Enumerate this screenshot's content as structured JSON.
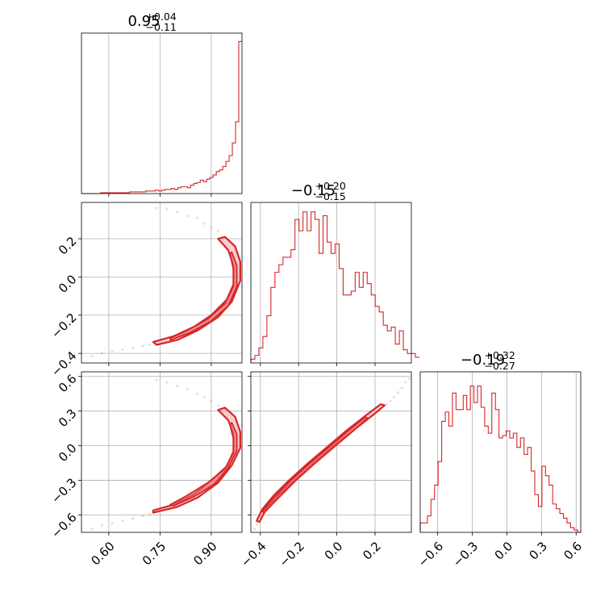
{
  "chart_data": {
    "type": "corner",
    "color": "#d62728",
    "parameters": [
      {
        "title_median": "0.95",
        "title_upper": "+0.04",
        "title_lower": "−0.11",
        "range": [
          0.52,
          0.99
        ],
        "ticks": [
          0.6,
          0.75,
          0.9
        ],
        "tick_labels": [
          "0.60",
          "0.75",
          "0.90"
        ],
        "hist_bin_edges_start": 0.52,
        "hist_bin_width": 0.0094,
        "hist_counts": [
          0,
          0,
          0,
          0,
          0,
          0,
          1,
          1,
          1,
          1,
          1,
          1,
          1,
          1,
          1,
          2,
          2,
          2,
          2,
          2,
          3,
          3,
          3,
          4,
          3,
          4,
          5,
          5,
          6,
          5,
          7,
          8,
          8,
          7,
          10,
          12,
          13,
          16,
          14,
          17,
          19,
          22,
          26,
          28,
          32,
          38,
          45,
          60,
          85,
          180
        ],
        "hist_ymax": 190
      },
      {
        "title_median": "−0.15",
        "title_upper": "+0.20",
        "title_lower": "−0.15",
        "range": [
          -0.45,
          0.39
        ],
        "ticks": [
          -0.4,
          -0.2,
          0.0,
          0.2
        ],
        "tick_labels": [
          "−0.4",
          "−0.2",
          "0.0",
          "0.2"
        ],
        "tick_labels_y": [
          "−0.4",
          "−0.2",
          "0.0",
          "0.2"
        ],
        "hist_bin_edges_start": -0.45,
        "hist_bin_width": 0.021,
        "hist_counts": [
          2,
          4,
          8,
          14,
          25,
          40,
          48,
          52,
          56,
          56,
          60,
          76,
          70,
          80,
          70,
          80,
          76,
          58,
          78,
          64,
          58,
          63,
          50,
          36,
          36,
          38,
          48,
          40,
          48,
          42,
          36,
          30,
          27,
          20,
          17,
          19,
          10,
          17,
          7,
          5,
          5,
          3
        ],
        "hist_ymax": 85
      },
      {
        "title_median": "−0.19",
        "title_upper": "+0.32",
        "title_lower": "−0.27",
        "range": [
          -0.75,
          0.64
        ],
        "ticks": [
          -0.6,
          -0.3,
          0.0,
          0.3,
          0.6
        ],
        "tick_labels": [
          "−0.6",
          "−0.3",
          "0.0",
          "0.3",
          "0.6"
        ],
        "hist_bin_edges_start": -0.75,
        "hist_bin_width": 0.031,
        "hist_counts": [
          4,
          4,
          7,
          14,
          20,
          30,
          47,
          51,
          45,
          59,
          52,
          52,
          58,
          52,
          62,
          55,
          62,
          53,
          45,
          42,
          59,
          52,
          40,
          41,
          43,
          40,
          42,
          36,
          40,
          33,
          36,
          26,
          16,
          11,
          28,
          24,
          20,
          12,
          10,
          8,
          6,
          4,
          2,
          1,
          0
        ],
        "hist_ymax": 68
      }
    ],
    "pairs": [
      {
        "x_param": 0,
        "y_param": 1,
        "contours": [
          {
            "level": "outer",
            "points": [
              [
                0.74,
                -0.355
              ],
              [
                0.8,
                -0.33
              ],
              [
                0.86,
                -0.28
              ],
              [
                0.92,
                -0.21
              ],
              [
                0.96,
                -0.13
              ],
              [
                0.985,
                -0.02
              ],
              [
                0.985,
                0.08
              ],
              [
                0.97,
                0.16
              ],
              [
                0.94,
                0.21
              ],
              [
                0.92,
                0.2
              ],
              [
                0.95,
                0.14
              ],
              [
                0.965,
                0.06
              ],
              [
                0.965,
                -0.04
              ],
              [
                0.945,
                -0.12
              ],
              [
                0.9,
                -0.2
              ],
              [
                0.85,
                -0.26
              ],
              [
                0.79,
                -0.31
              ],
              [
                0.73,
                -0.34
              ]
            ]
          },
          {
            "level": "inner",
            "points": [
              [
                0.78,
                -0.33
              ],
              [
                0.84,
                -0.29
              ],
              [
                0.9,
                -0.23
              ],
              [
                0.95,
                -0.15
              ],
              [
                0.975,
                -0.05
              ],
              [
                0.975,
                0.06
              ],
              [
                0.96,
                0.13
              ],
              [
                0.955,
                0.12
              ],
              [
                0.965,
                0.04
              ],
              [
                0.965,
                -0.05
              ],
              [
                0.94,
                -0.14
              ],
              [
                0.89,
                -0.22
              ],
              [
                0.83,
                -0.28
              ],
              [
                0.78,
                -0.32
              ]
            ]
          }
        ],
        "scatter_tail": [
          [
            0.55,
            -0.415
          ],
          [
            0.58,
            -0.4
          ],
          [
            0.61,
            -0.39
          ],
          [
            0.64,
            -0.38
          ],
          [
            0.67,
            -0.37
          ],
          [
            0.7,
            -0.36
          ],
          [
            0.72,
            -0.355
          ],
          [
            0.74,
            0.36
          ],
          [
            0.77,
            0.355
          ],
          [
            0.8,
            0.34
          ],
          [
            0.83,
            0.32
          ],
          [
            0.86,
            0.31
          ],
          [
            0.88,
            0.28
          ],
          [
            0.9,
            0.26
          ],
          [
            0.92,
            0.24
          ]
        ]
      },
      {
        "x_param": 0,
        "y_param": 2,
        "contours": [
          {
            "level": "outer",
            "points": [
              [
                0.73,
                -0.58
              ],
              [
                0.8,
                -0.53
              ],
              [
                0.86,
                -0.45
              ],
              [
                0.92,
                -0.32
              ],
              [
                0.96,
                -0.17
              ],
              [
                0.985,
                -0.02
              ],
              [
                0.985,
                0.12
              ],
              [
                0.97,
                0.25
              ],
              [
                0.94,
                0.33
              ],
              [
                0.92,
                0.31
              ],
              [
                0.95,
                0.22
              ],
              [
                0.965,
                0.1
              ],
              [
                0.965,
                -0.05
              ],
              [
                0.945,
                -0.18
              ],
              [
                0.9,
                -0.3
              ],
              [
                0.85,
                -0.42
              ],
              [
                0.79,
                -0.51
              ],
              [
                0.73,
                -0.56
              ]
            ]
          },
          {
            "level": "inner",
            "points": [
              [
                0.79,
                -0.52
              ],
              [
                0.85,
                -0.44
              ],
              [
                0.91,
                -0.33
              ],
              [
                0.95,
                -0.19
              ],
              [
                0.975,
                -0.04
              ],
              [
                0.975,
                0.1
              ],
              [
                0.96,
                0.2
              ],
              [
                0.955,
                0.18
              ],
              [
                0.965,
                0.06
              ],
              [
                0.965,
                -0.06
              ],
              [
                0.94,
                -0.2
              ],
              [
                0.89,
                -0.32
              ],
              [
                0.83,
                -0.43
              ],
              [
                0.78,
                -0.51
              ]
            ]
          }
        ],
        "scatter_tail": [
          [
            0.55,
            -0.72
          ],
          [
            0.58,
            -0.69
          ],
          [
            0.61,
            -0.67
          ],
          [
            0.64,
            -0.65
          ],
          [
            0.67,
            -0.63
          ],
          [
            0.7,
            -0.61
          ],
          [
            0.72,
            -0.595
          ],
          [
            0.74,
            0.57
          ],
          [
            0.77,
            0.55
          ],
          [
            0.8,
            0.52
          ],
          [
            0.83,
            0.49
          ],
          [
            0.86,
            0.45
          ],
          [
            0.88,
            0.42
          ],
          [
            0.9,
            0.39
          ],
          [
            0.92,
            0.35
          ]
        ]
      },
      {
        "x_param": 1,
        "y_param": 2,
        "contours": [
          {
            "level": "outer",
            "points": [
              [
                -0.405,
                -0.66
              ],
              [
                -0.37,
                -0.55
              ],
              [
                -0.3,
                -0.42
              ],
              [
                -0.2,
                -0.27
              ],
              [
                -0.1,
                -0.12
              ],
              [
                0.0,
                0.02
              ],
              [
                0.1,
                0.15
              ],
              [
                0.2,
                0.28
              ],
              [
                0.25,
                0.35
              ],
              [
                0.23,
                0.36
              ],
              [
                0.15,
                0.26
              ],
              [
                0.05,
                0.13
              ],
              [
                -0.05,
                -0.01
              ],
              [
                -0.15,
                -0.15
              ],
              [
                -0.25,
                -0.3
              ],
              [
                -0.33,
                -0.43
              ],
              [
                -0.39,
                -0.55
              ],
              [
                -0.42,
                -0.65
              ]
            ]
          },
          {
            "level": "inner",
            "points": [
              [
                -0.38,
                -0.58
              ],
              [
                -0.31,
                -0.46
              ],
              [
                -0.22,
                -0.31
              ],
              [
                -0.12,
                -0.16
              ],
              [
                -0.02,
                -0.02
              ],
              [
                0.08,
                0.12
              ],
              [
                0.16,
                0.24
              ],
              [
                0.15,
                0.25
              ],
              [
                0.06,
                0.13
              ],
              [
                -0.04,
                -0.01
              ],
              [
                -0.14,
                -0.15
              ],
              [
                -0.24,
                -0.3
              ],
              [
                -0.33,
                -0.45
              ],
              [
                -0.39,
                -0.57
              ]
            ]
          }
        ],
        "scatter_tail": [
          [
            -0.43,
            -0.72
          ],
          [
            -0.42,
            -0.68
          ],
          [
            0.26,
            0.36
          ],
          [
            0.28,
            0.39
          ],
          [
            0.3,
            0.42
          ],
          [
            0.32,
            0.46
          ],
          [
            0.34,
            0.5
          ],
          [
            0.36,
            0.55
          ],
          [
            0.38,
            0.58
          ]
        ]
      }
    ]
  }
}
